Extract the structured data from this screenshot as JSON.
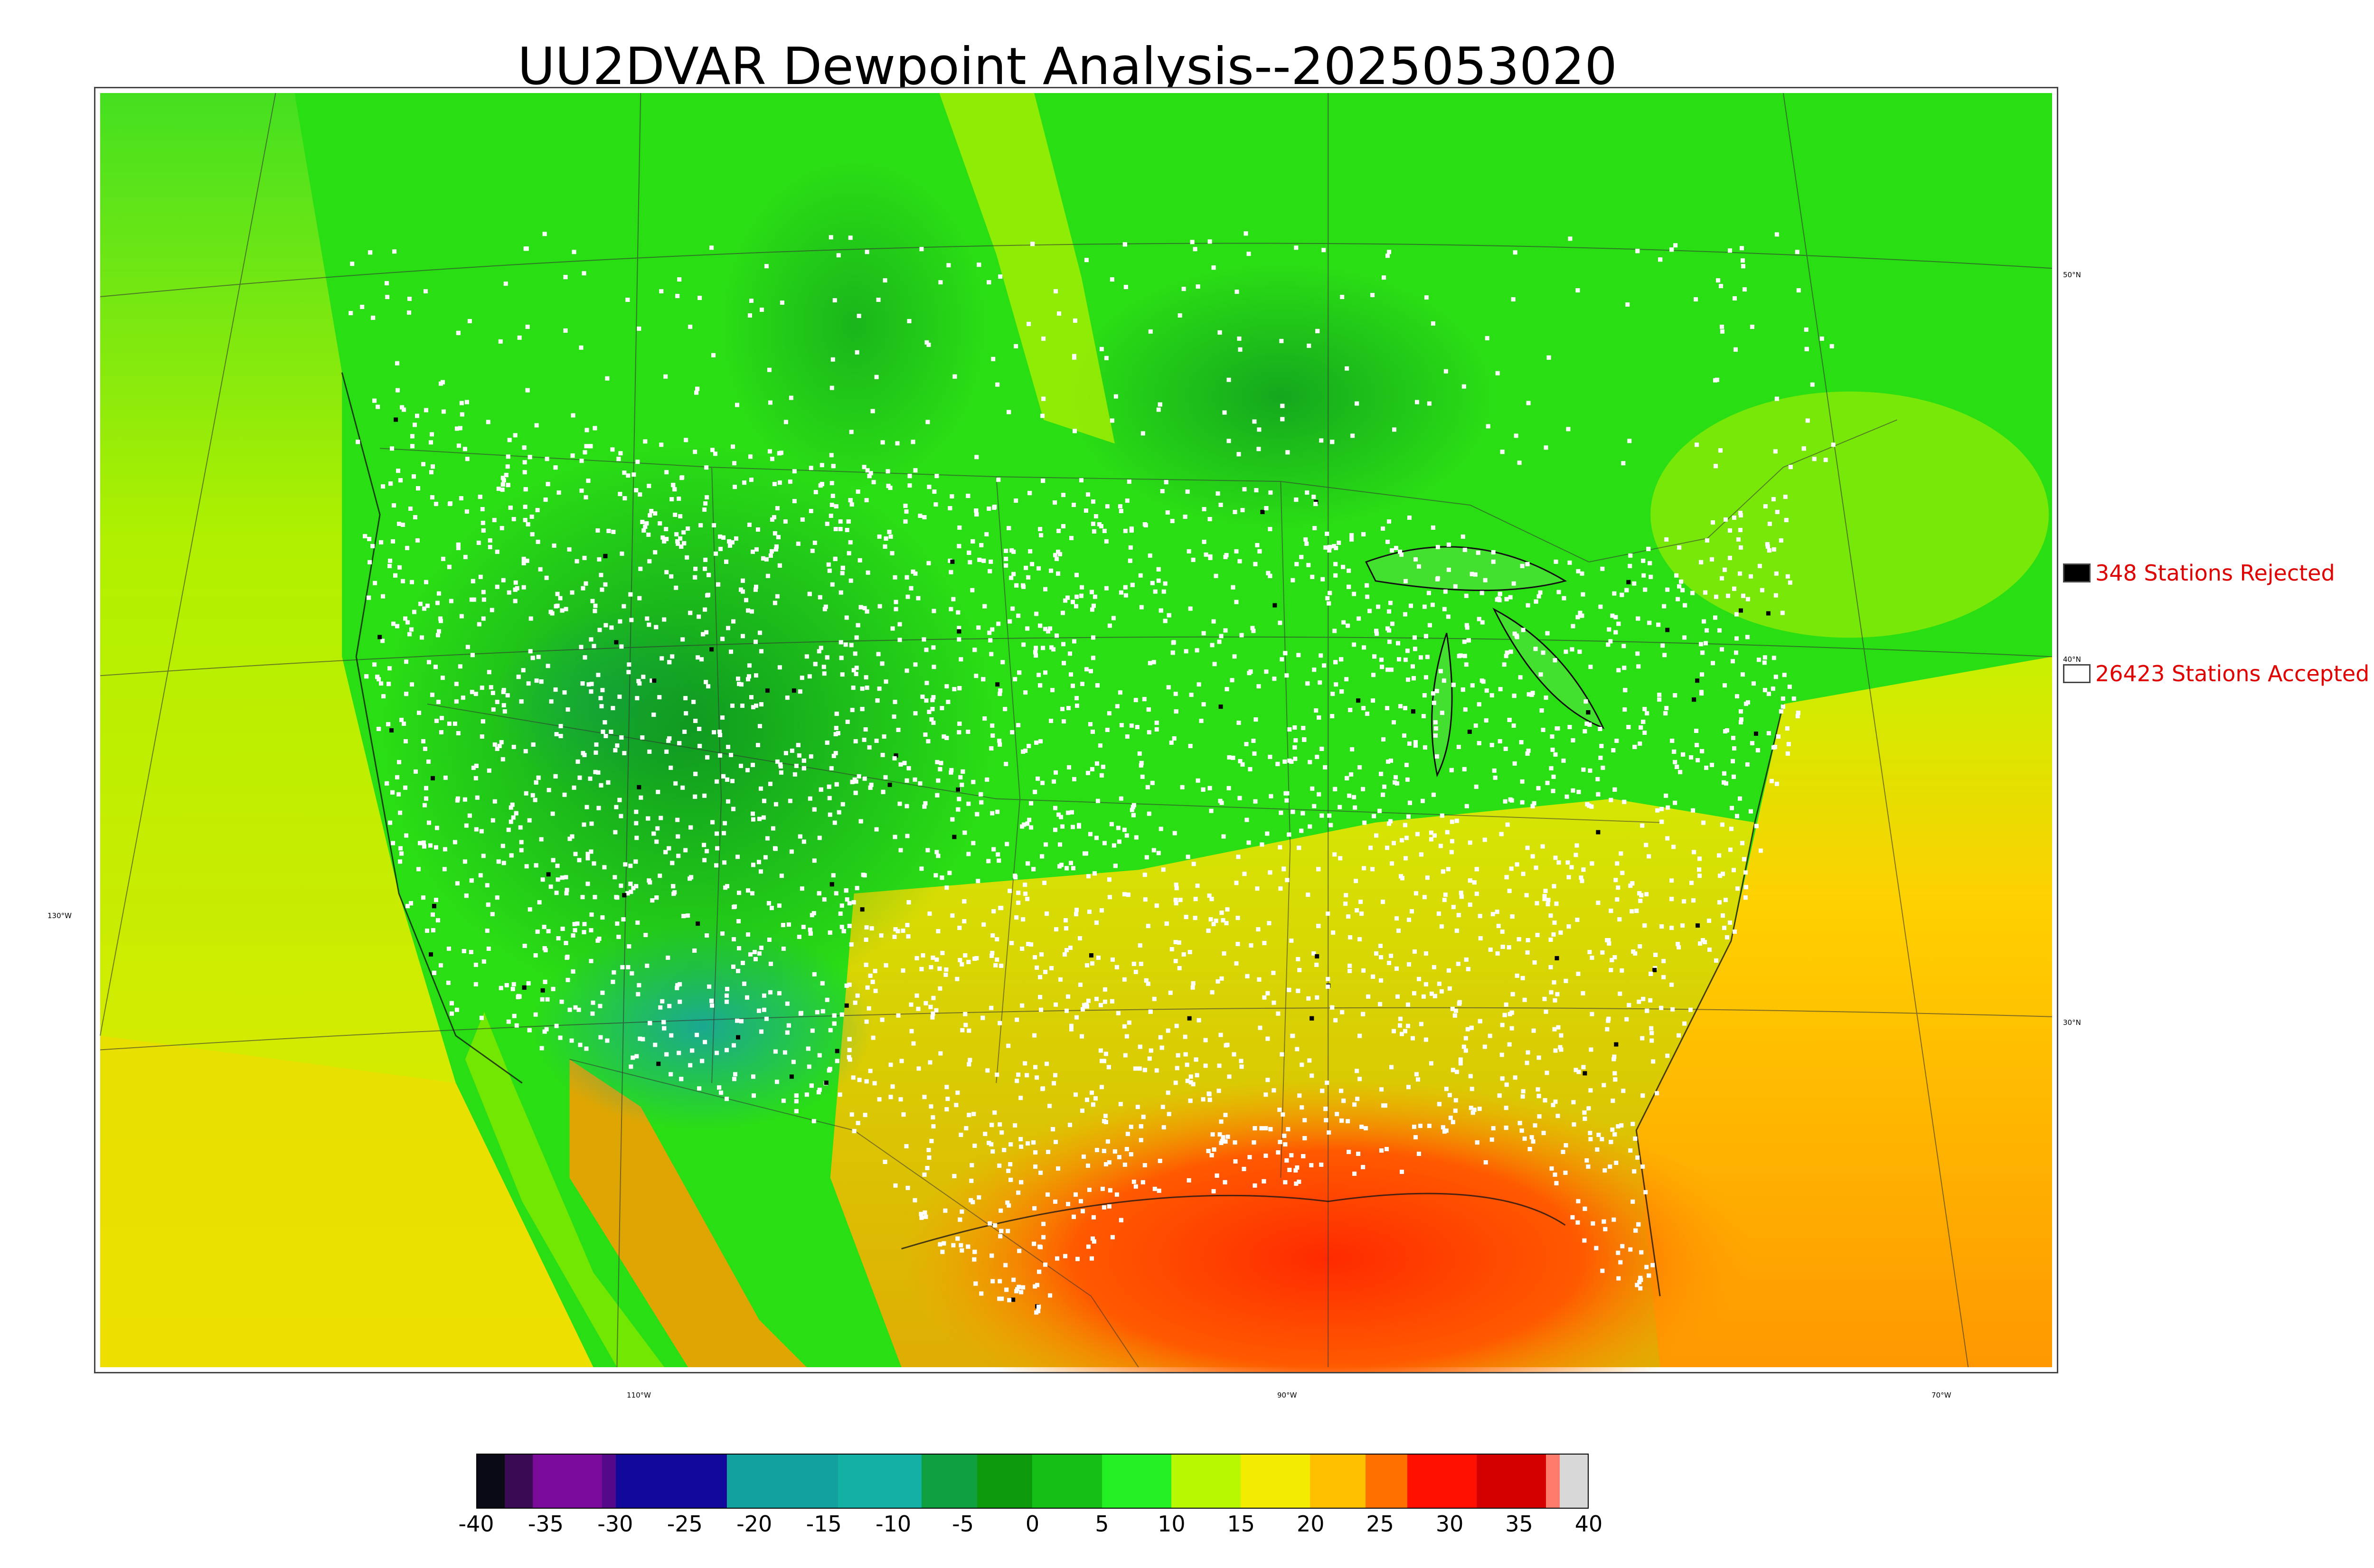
{
  "title": "UU2DVAR Dewpoint Analysis--2025053020",
  "map": {
    "lat_labels": [
      "50°N",
      "40°N",
      "30°N"
    ],
    "lon_labels": [
      "130°W",
      "110°W",
      "90°W",
      "70°W"
    ],
    "colors": {
      "land_green": "#22dd11",
      "dark_green": "#11a022",
      "teal": "#12a890",
      "yellow_green": "#b8f000",
      "yellow": "#f0e000",
      "orange": "#ff9a00",
      "red": "#ff3a00",
      "station_accepted": "#ffffff",
      "station_rejected": "#000000"
    }
  },
  "legend": {
    "rejected": {
      "count": 348,
      "label": "348 Stations Rejected",
      "swatch": "#000000"
    },
    "accepted": {
      "count": 26423,
      "label": "26423 Stations Accepted",
      "swatch": "#ffffff"
    }
  },
  "colorbar": {
    "ticks": [
      "-40",
      "-35",
      "-30",
      "-25",
      "-20",
      "-15",
      "-10",
      "-5",
      "0",
      "5",
      "10",
      "15",
      "20",
      "25",
      "30",
      "35",
      "40"
    ],
    "range": [
      -40,
      40
    ],
    "segments": [
      {
        "from": -40,
        "to": -38,
        "color": "#0a0a14"
      },
      {
        "from": -38,
        "to": -36,
        "color": "#3a0a55"
      },
      {
        "from": -36,
        "to": -31,
        "color": "#7a0a9a"
      },
      {
        "from": -31,
        "to": -30,
        "color": "#55088a"
      },
      {
        "from": -30,
        "to": -22,
        "color": "#12089a"
      },
      {
        "from": -22,
        "to": -14,
        "color": "#12a0a0"
      },
      {
        "from": -14,
        "to": -8,
        "color": "#14b0a4"
      },
      {
        "from": -8,
        "to": -4,
        "color": "#10a040"
      },
      {
        "from": -4,
        "to": 0,
        "color": "#0c9a0c"
      },
      {
        "from": 0,
        "to": 5,
        "color": "#14c014"
      },
      {
        "from": 5,
        "to": 10,
        "color": "#22f022"
      },
      {
        "from": 10,
        "to": 15,
        "color": "#b8f800"
      },
      {
        "from": 15,
        "to": 20,
        "color": "#f4ec00"
      },
      {
        "from": 20,
        "to": 24,
        "color": "#ffc000"
      },
      {
        "from": 24,
        "to": 27,
        "color": "#ff7000"
      },
      {
        "from": 27,
        "to": 32,
        "color": "#ff1000"
      },
      {
        "from": 32,
        "to": 37,
        "color": "#d40000"
      },
      {
        "from": 37,
        "to": 38,
        "color": "#ff7a6a"
      },
      {
        "from": 38,
        "to": 40,
        "color": "#d8d8d8"
      }
    ]
  }
}
